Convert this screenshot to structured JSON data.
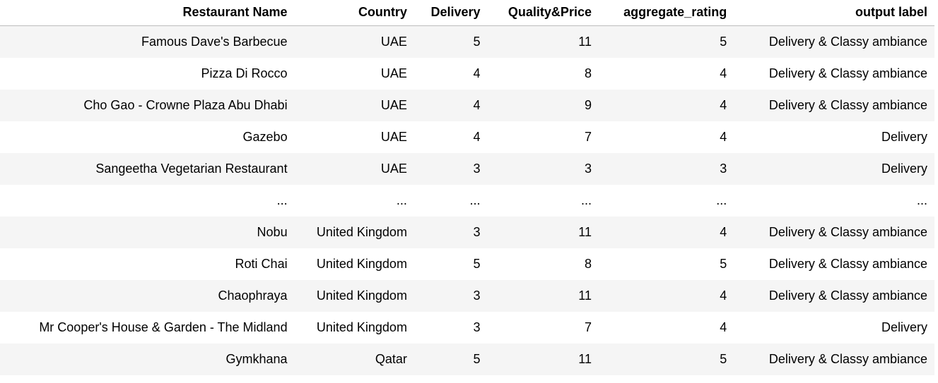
{
  "table": {
    "columns": [
      "Restaurant Name",
      "Country",
      "Delivery",
      "Quality&Price",
      "aggregate_rating",
      "output label"
    ],
    "rows": [
      [
        "Famous Dave's Barbecue",
        "UAE",
        "5",
        "11",
        "5",
        "Delivery & Classy ambiance"
      ],
      [
        "Pizza Di Rocco",
        "UAE",
        "4",
        "8",
        "4",
        "Delivery & Classy ambiance"
      ],
      [
        "Cho Gao - Crowne Plaza Abu Dhabi",
        "UAE",
        "4",
        "9",
        "4",
        "Delivery & Classy ambiance"
      ],
      [
        "Gazebo",
        "UAE",
        "4",
        "7",
        "4",
        "Delivery"
      ],
      [
        "Sangeetha Vegetarian Restaurant",
        "UAE",
        "3",
        "3",
        "3",
        "Delivery"
      ],
      [
        "...",
        "...",
        "...",
        "...",
        "...",
        "..."
      ],
      [
        "Nobu",
        "United Kingdom",
        "3",
        "11",
        "4",
        "Delivery & Classy ambiance"
      ],
      [
        "Roti Chai",
        "United Kingdom",
        "5",
        "8",
        "5",
        "Delivery & Classy ambiance"
      ],
      [
        "Chaophraya",
        "United Kingdom",
        "3",
        "11",
        "4",
        "Delivery & Classy ambiance"
      ],
      [
        "Mr Cooper's House & Garden - The Midland",
        "United Kingdom",
        "3",
        "7",
        "4",
        "Delivery"
      ],
      [
        "Gymkhana",
        "Qatar",
        "5",
        "11",
        "5",
        "Delivery & Classy ambiance"
      ]
    ]
  },
  "colors": {
    "striped_row": "#f5f5f5",
    "header_border": "#bdbdbd"
  }
}
